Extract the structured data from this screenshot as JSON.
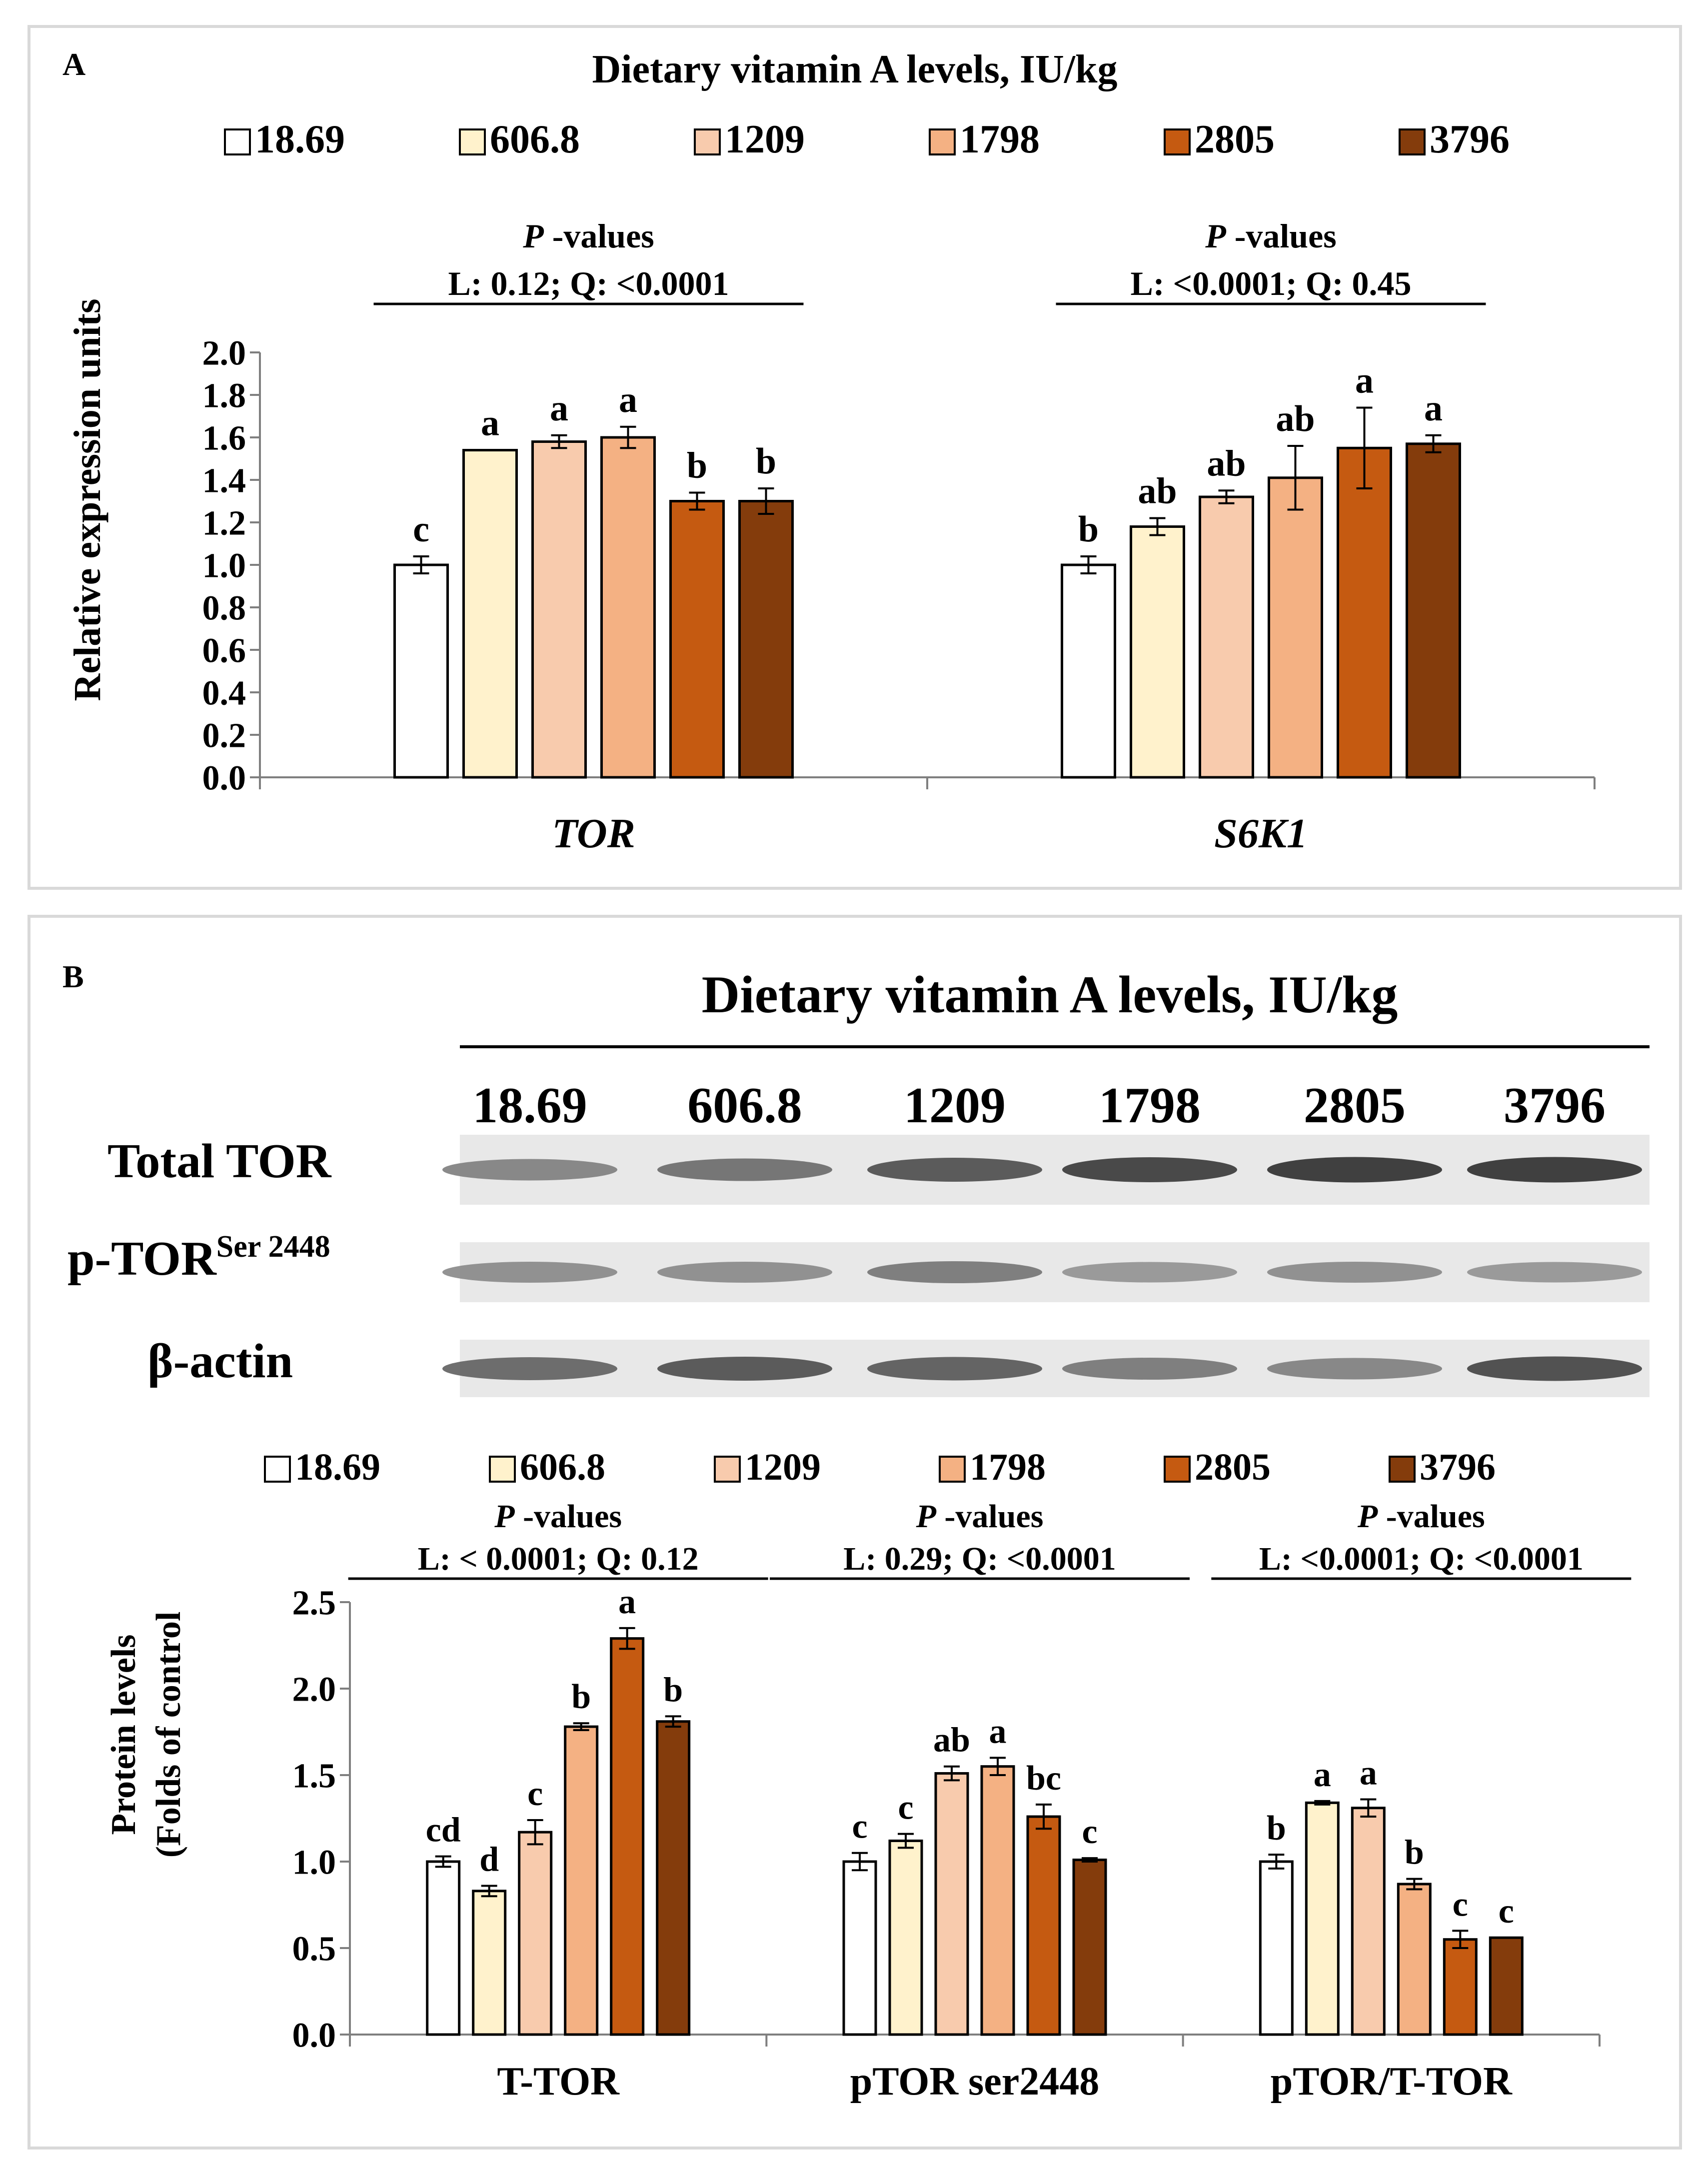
{
  "panel_a": {
    "label": "A",
    "header": "Dietary vitamin A levels, IU/kg",
    "legend": [
      "18.69",
      "606.8",
      "1209",
      "1798",
      "2805",
      "3796"
    ],
    "ylabel": "Relative expression units"
  },
  "panel_b": {
    "label": "B",
    "header": "Dietary vitamin A levels, IU/kg",
    "blot_levels": [
      "18.69",
      "606.8",
      "1209",
      "1798",
      "2805",
      "3796"
    ],
    "blot_rows": {
      "total_tor": "Total TOR",
      "p_tor_main": "p-TOR",
      "p_tor_sup": "Ser 2448",
      "beta_actin": "β-actin"
    },
    "legend": [
      "18.69",
      "606.8",
      "1209",
      "1798",
      "2805",
      "3796"
    ],
    "ylabel_line1": "Protein levels",
    "ylabel_line2": "(Folds of control"
  },
  "colors": [
    "#ffffff",
    "#fff2cc",
    "#f8cbad",
    "#f4b183",
    "#c55a11",
    "#843c0c"
  ],
  "chart_data": [
    {
      "type": "bar",
      "title": "Dietary vitamin A levels, IU/kg",
      "xlabel": "",
      "ylabel": "Relative expression units",
      "ylim": [
        0,
        2.0
      ],
      "yticks": [
        "0.0",
        "0.2",
        "0.4",
        "0.6",
        "0.8",
        "1.0",
        "1.2",
        "1.4",
        "1.6",
        "1.8",
        "2.0"
      ],
      "categories": [
        "TOR",
        "S6K1"
      ],
      "pvalues_title": "P -values",
      "pvalues": [
        "L: 0.12; Q: <0.0001",
        "L: <0.0001; Q: 0.45"
      ],
      "series": [
        {
          "name": "18.69",
          "values": [
            1.0,
            1.0
          ],
          "errors": [
            0.04,
            0.04
          ],
          "letters": [
            "c",
            "b"
          ]
        },
        {
          "name": "606.8",
          "values": [
            1.54,
            1.18
          ],
          "errors": [
            0.0,
            0.04
          ],
          "letters": [
            "a",
            "ab"
          ]
        },
        {
          "name": "1209",
          "values": [
            1.58,
            1.32
          ],
          "errors": [
            0.03,
            0.03
          ],
          "letters": [
            "a",
            "ab"
          ]
        },
        {
          "name": "1798",
          "values": [
            1.6,
            1.41
          ],
          "errors": [
            0.05,
            0.15
          ],
          "letters": [
            "a",
            "ab"
          ]
        },
        {
          "name": "2805",
          "values": [
            1.3,
            1.55
          ],
          "errors": [
            0.04,
            0.19
          ],
          "letters": [
            "b",
            "a"
          ]
        },
        {
          "name": "3796",
          "values": [
            1.3,
            1.57
          ],
          "errors": [
            0.06,
            0.04
          ],
          "letters": [
            "b",
            "a"
          ]
        }
      ]
    },
    {
      "type": "bar",
      "title": "",
      "xlabel": "",
      "ylabel": "Protein levels (Folds of control",
      "ylim": [
        0,
        2.5
      ],
      "yticks": [
        "0.0",
        "0.5",
        "1.0",
        "1.5",
        "2.0",
        "2.5"
      ],
      "categories": [
        "T-TOR",
        "pTOR ser2448",
        "pTOR/T-TOR"
      ],
      "pvalues_title": "P -values",
      "pvalues": [
        "L: < 0.0001; Q: 0.12",
        "L: 0.29; Q: <0.0001",
        "L: <0.0001; Q: <0.0001"
      ],
      "series": [
        {
          "name": "18.69",
          "values": [
            1.0,
            1.0,
            1.0
          ],
          "errors": [
            0.03,
            0.05,
            0.04
          ],
          "letters": [
            "cd",
            "c",
            "b"
          ]
        },
        {
          "name": "606.8",
          "values": [
            0.83,
            1.12,
            1.34
          ],
          "errors": [
            0.03,
            0.04,
            0.01
          ],
          "letters": [
            "d",
            "c",
            "a"
          ]
        },
        {
          "name": "1209",
          "values": [
            1.17,
            1.51,
            1.31
          ],
          "errors": [
            0.07,
            0.04,
            0.05
          ],
          "letters": [
            "c",
            "ab",
            "a"
          ]
        },
        {
          "name": "1798",
          "values": [
            1.78,
            1.55,
            0.87
          ],
          "errors": [
            0.02,
            0.05,
            0.03
          ],
          "letters": [
            "b",
            "a",
            "b"
          ]
        },
        {
          "name": "2805",
          "values": [
            2.29,
            1.26,
            0.55
          ],
          "errors": [
            0.06,
            0.07,
            0.05
          ],
          "letters": [
            "a",
            "bc",
            "c"
          ]
        },
        {
          "name": "3796",
          "values": [
            1.81,
            1.01,
            0.56
          ],
          "errors": [
            0.03,
            0.01,
            0.0
          ],
          "letters": [
            "b",
            "c",
            "c"
          ]
        }
      ]
    }
  ]
}
